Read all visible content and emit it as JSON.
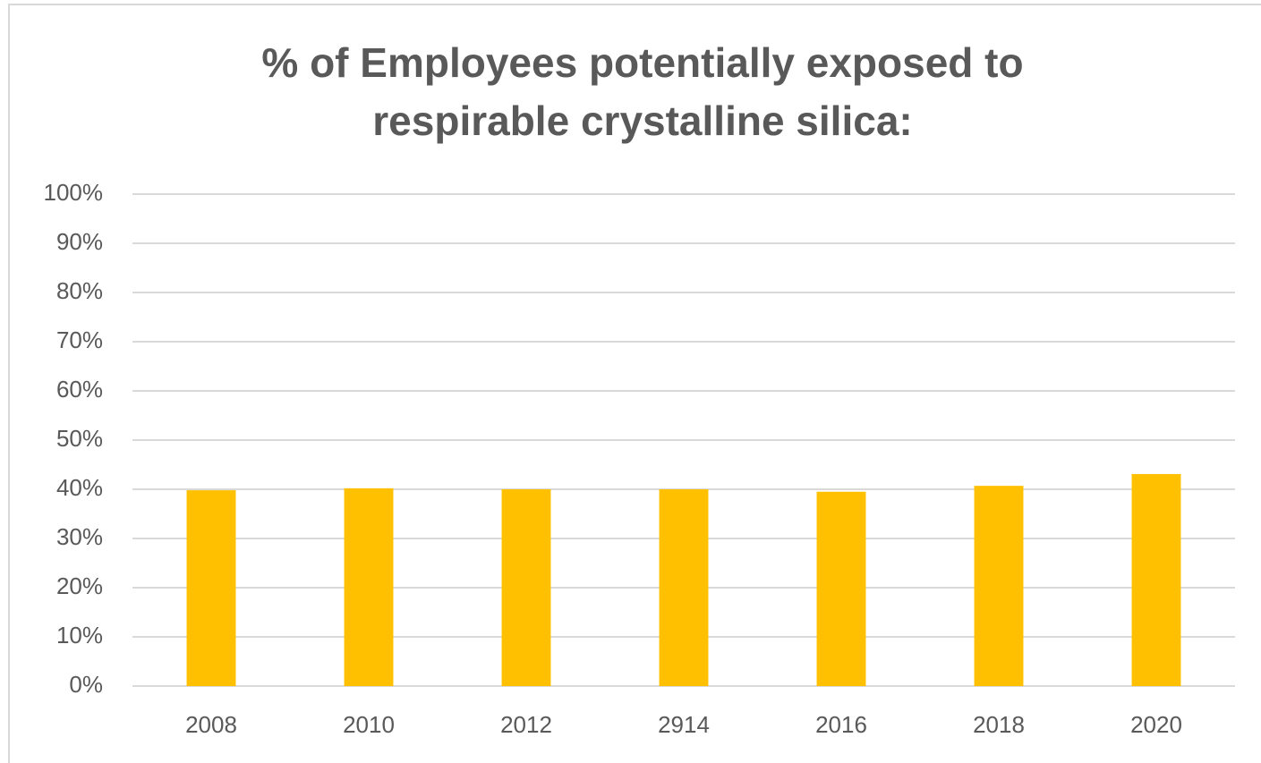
{
  "chart_data": {
    "type": "bar",
    "title": "% of Employees potentially exposed to respirable crystalline silica:",
    "categories": [
      "2008",
      "2010",
      "2012",
      "2914",
      "2016",
      "2018",
      "2020"
    ],
    "values": [
      39.8,
      40.2,
      40.0,
      40.0,
      39.5,
      40.7,
      43.1
    ],
    "color": "#FFC000",
    "ylim": [
      0,
      100
    ],
    "yticks": [
      {
        "value": 0,
        "label": "0%"
      },
      {
        "value": 10,
        "label": "10%"
      },
      {
        "value": 20,
        "label": "20%"
      },
      {
        "value": 30,
        "label": "30%"
      },
      {
        "value": 40,
        "label": "40%"
      },
      {
        "value": 50,
        "label": "50%"
      },
      {
        "value": 60,
        "label": "60%"
      },
      {
        "value": 70,
        "label": "70%"
      },
      {
        "value": 80,
        "label": "80%"
      },
      {
        "value": 90,
        "label": "90%"
      },
      {
        "value": 100,
        "label": "100%"
      }
    ],
    "grid": true
  }
}
